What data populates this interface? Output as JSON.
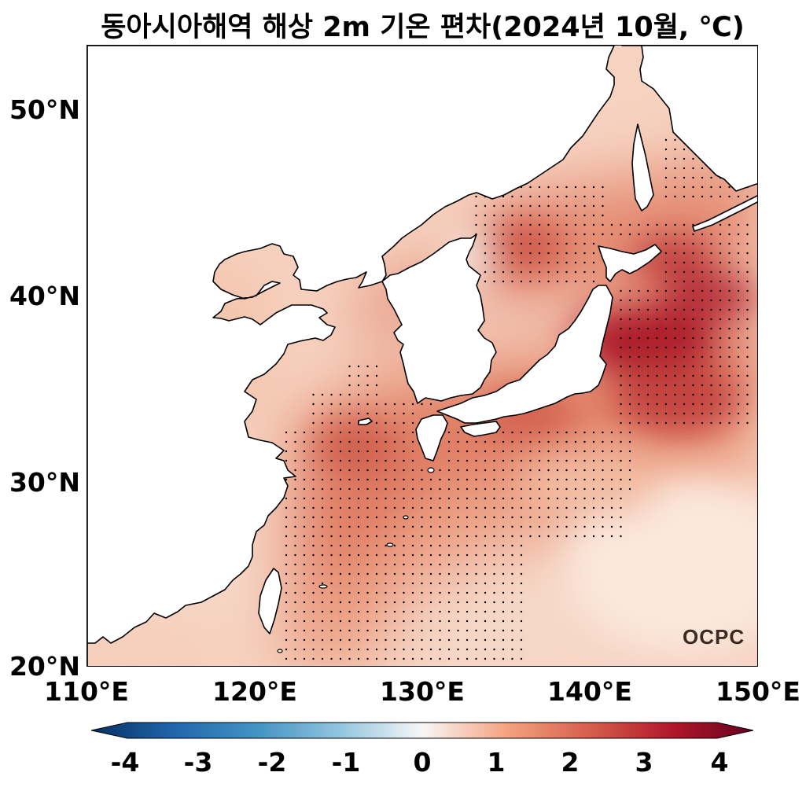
{
  "title": "동아시아해역 해상 2m 기온 편차(2024년 10월, ℃)",
  "map": {
    "lon_range": [
      110,
      150
    ],
    "lat_range": [
      20,
      53.5
    ],
    "projection": "equirectangular",
    "variable": "해상 2m 기온 편차",
    "unit": "℃",
    "lat_ticks": [
      "50°N",
      "40°N",
      "30°N",
      "20°N"
    ],
    "lon_ticks": [
      "110°E",
      "120°E",
      "130°E",
      "140°E",
      "150°E"
    ],
    "land_color": "#ffffff",
    "coastline_color": "#000000",
    "stippling": "statistically significant grid points (black dots)"
  },
  "anomaly_regions": [
    {
      "region": "East of northern Japan",
      "lon": 143,
      "lat": 37.5,
      "anomaly": 3.3
    },
    {
      "region": "East of Hokkaido",
      "lon": 145,
      "lat": 42,
      "anomaly": 2.8
    },
    {
      "region": "East Sea",
      "lon": 136,
      "lat": 42,
      "anomaly": 2.4
    },
    {
      "region": "South of Jeju / East China Sea",
      "lon": 127,
      "lat": 32,
      "anomaly": 2.2
    },
    {
      "region": "South of Japan",
      "lon": 136,
      "lat": 33.5,
      "anomaly": 2.0
    },
    {
      "region": "Yellow Sea",
      "lon": 123.5,
      "lat": 35,
      "anomaly": 1.3
    },
    {
      "region": "Bohai Sea",
      "lon": 120,
      "lat": 39,
      "anomaly": 0.3
    },
    {
      "region": "Tropical western Pacific",
      "lon": 145,
      "lat": 22,
      "anomaly": 0.2
    }
  ],
  "colorbar": {
    "min": -4,
    "max": 4,
    "ticks": [
      "-4",
      "-3",
      "-2",
      "-1",
      "0",
      "1",
      "2",
      "3",
      "4"
    ],
    "colormap": "RdBu_r",
    "colors": [
      "#053061",
      "#2166ac",
      "#4393c3",
      "#92c5de",
      "#f7f7f7",
      "#f4a582",
      "#d6604d",
      "#b2182b",
      "#67001f"
    ]
  },
  "logo": "OCPC"
}
